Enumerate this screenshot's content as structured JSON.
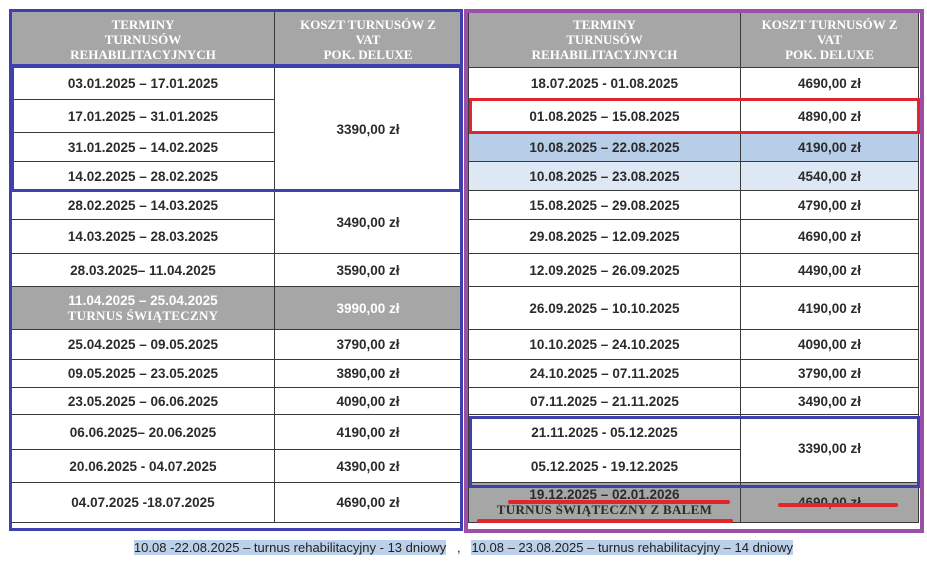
{
  "colors": {
    "header_gray": "#a6a6a6",
    "frame_blue": "#3f3fae",
    "frame_purple": "#9a4fa8",
    "highlight_red": "#e0262b",
    "row_blue": "#b7cde8",
    "row_light_blue": "#dde8f4"
  },
  "left": {
    "header": {
      "terms": [
        "TERMINY",
        "TURNUSÓW",
        "REHABILITACYJNYCH"
      ],
      "cost": [
        "KOSZT TURNUSÓW Z",
        "VAT",
        "POK. DELUXE"
      ]
    },
    "rows": [
      {
        "date": "03.01.2025 – 17.01.2025"
      },
      {
        "date": "17.01.2025 – 31.01.2025"
      },
      {
        "date": "31.01.2025 – 14.02.2025"
      },
      {
        "date": "14.02.2025 – 28.02.2025"
      },
      {
        "date": "28.02.2025 – 14.03.2025"
      },
      {
        "date": "14.03.2025 – 28.03.2025"
      },
      {
        "date": "28.03.2025– 11.04.2025",
        "price": "3590,00 zł"
      },
      {
        "date": "11.04.2025 – 25.04.2025",
        "sub": "TURNUS ŚWIĄTECZNY",
        "price": "3990,00 zł"
      },
      {
        "date": "25.04.2025 – 09.05.2025",
        "price": "3790,00 zł"
      },
      {
        "date": "09.05.2025 – 23.05.2025",
        "price": "3890,00 zł"
      },
      {
        "date": "23.05.2025 – 06.06.2025",
        "price": "4090,00 zł"
      },
      {
        "date": "06.06.2025– 20.06.2025",
        "price": "4190,00 zł"
      },
      {
        "date": "20.06.2025 - 04.07.2025",
        "price": "4390,00 zł"
      },
      {
        "date": "04.07.2025 -18.07.2025",
        "price": "4690,00 zł"
      }
    ],
    "merged_price_1": "3390,00 zł",
    "merged_price_2": "3490,00 zł"
  },
  "right": {
    "header": {
      "terms": [
        "TERMINY",
        "TURNUSÓW",
        "REHABILITACYJNYCH"
      ],
      "cost": [
        "KOSZT TURNUSÓW Z",
        "VAT",
        "POK. DELUXE"
      ]
    },
    "rows": [
      {
        "date": "18.07.2025 - 01.08.2025",
        "price": "4690,00 zł"
      },
      {
        "date": "01.08.2025 – 15.08.2025",
        "price": "4890,00 zł"
      },
      {
        "date": "10.08.2025 – 22.08.2025",
        "price": "4190,00 zł"
      },
      {
        "date": "10.08.2025 – 23.08.2025",
        "price": "4540,00 zł"
      },
      {
        "date": "15.08.2025 – 29.08.2025",
        "price": "4790,00 zł"
      },
      {
        "date": "29.08.2025 – 12.09.2025",
        "price": "4690,00 zł"
      },
      {
        "date": "12.09.2025 – 26.09.2025",
        "price": "4490,00 zł"
      },
      {
        "date": "26.09.2025 – 10.10.2025",
        "price": "4190,00 zł"
      },
      {
        "date": "10.10.2025 – 24.10.2025",
        "price": "4090,00 zł"
      },
      {
        "date": "24.10.2025 – 07.11.2025",
        "price": "3790,00 zł"
      },
      {
        "date": "07.11.2025 – 21.11.2025",
        "price": "3490,00 zł"
      },
      {
        "date": "21.11.2025 - 05.12.2025"
      },
      {
        "date": "05.12.2025 - 19.12.2025"
      },
      {
        "date": "19.12.2025 – 02.01.2026",
        "sub": "TURNUS ŚWIĄTECZNY Z BALEM",
        "price": "4690,00 zł"
      }
    ],
    "merged_price": "3390,00 zł"
  },
  "footer": {
    "note1": "10.08 -22.08.2025 – turnus rehabilitacyjny - 13 dniowy",
    "separator": ",",
    "note2": "10.08 – 23.08.2025 – turnus rehabilitacyjny – 14 dniowy"
  }
}
